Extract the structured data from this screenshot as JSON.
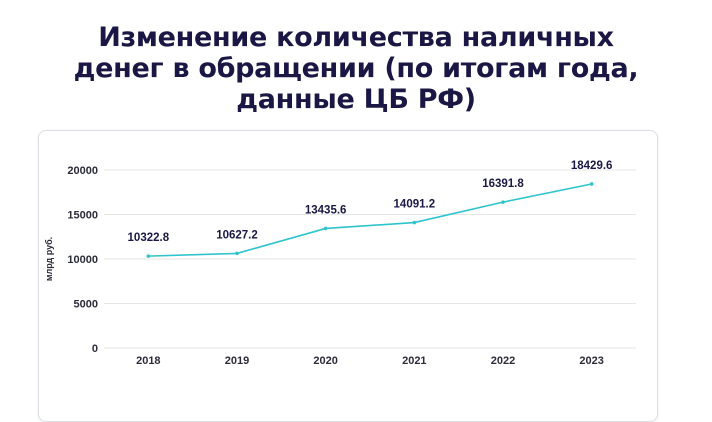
{
  "chart_data": {
    "type": "line",
    "title": "Изменение количества наличных\nденег в обращении (по итогам года,\nданные ЦБ РФ)",
    "xlabel": "",
    "ylabel": "млрд руб.",
    "categories": [
      "2018",
      "2019",
      "2020",
      "2021",
      "2022",
      "2023"
    ],
    "series": [
      {
        "values": [
          10322.8,
          10627.2,
          13435.6,
          14091.2,
          16391.8,
          18429.6
        ]
      }
    ],
    "data_labels": [
      "10322.8",
      "10627.2",
      "13435.6",
      "14091.2",
      "16391.8",
      "18429.6"
    ],
    "yticks": [
      0,
      5000,
      10000,
      15000,
      20000
    ],
    "ylim": [
      0,
      20000
    ],
    "grid": true,
    "legend": "none",
    "colors": {
      "line": "#2ec4cc",
      "grid": "#e6e6e6",
      "title": "#1a1744"
    }
  }
}
